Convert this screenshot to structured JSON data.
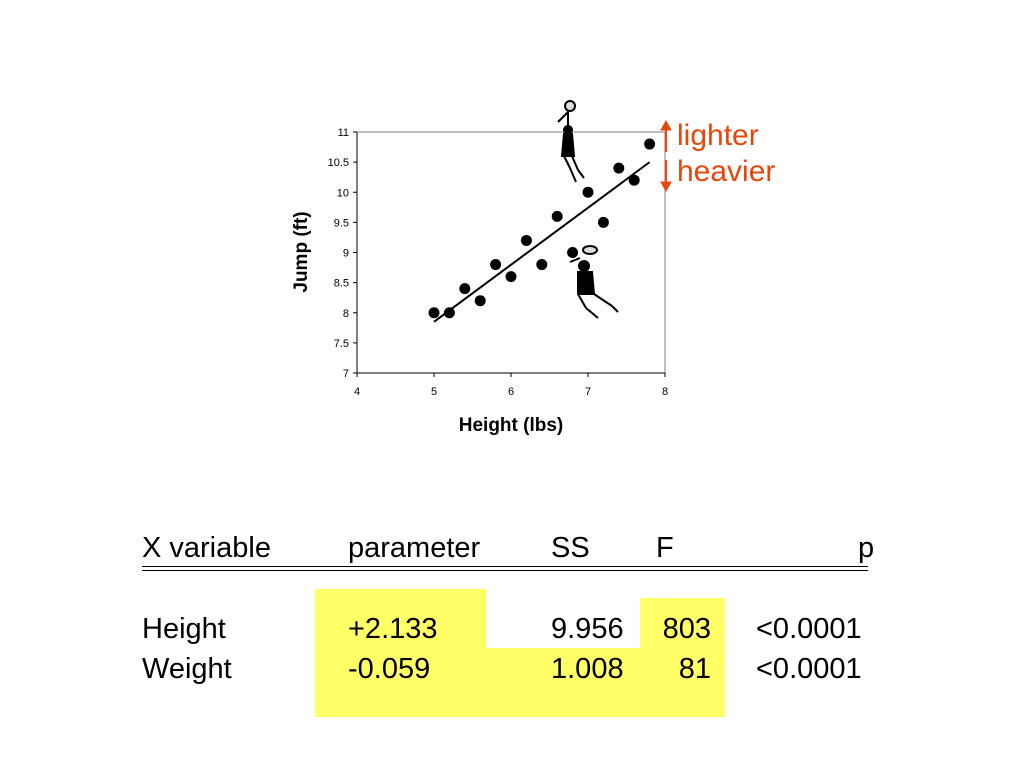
{
  "chart_data": {
    "type": "scatter",
    "xlabel": "Height (lbs)",
    "ylabel": "Jump (ft)",
    "xlim": [
      4,
      8
    ],
    "ylim": [
      7,
      11
    ],
    "xticks": [
      "4",
      "5",
      "6",
      "7",
      "8"
    ],
    "yticks": [
      "7",
      "7.5",
      "8",
      "8.5",
      "9",
      "9.5",
      "10",
      "10.5",
      "11"
    ],
    "points": [
      {
        "x": 5.0,
        "y": 8.0
      },
      {
        "x": 5.2,
        "y": 8.0
      },
      {
        "x": 5.4,
        "y": 8.4
      },
      {
        "x": 5.6,
        "y": 8.2
      },
      {
        "x": 5.8,
        "y": 8.8
      },
      {
        "x": 6.0,
        "y": 8.6
      },
      {
        "x": 6.2,
        "y": 9.2
      },
      {
        "x": 6.4,
        "y": 8.8
      },
      {
        "x": 6.6,
        "y": 9.6
      },
      {
        "x": 6.8,
        "y": 9.0
      },
      {
        "x": 7.0,
        "y": 10.0
      },
      {
        "x": 7.2,
        "y": 9.5
      },
      {
        "x": 7.4,
        "y": 10.4
      },
      {
        "x": 7.6,
        "y": 10.2
      },
      {
        "x": 7.8,
        "y": 10.8
      }
    ],
    "trendline": {
      "x1": 5.0,
      "y1": 7.85,
      "x2": 7.8,
      "y2": 10.5
    },
    "grid": false,
    "annotations": {
      "up_label": "lighter",
      "down_label": "heavier",
      "color": "#e8460c"
    }
  },
  "table": {
    "headers": [
      "X variable",
      "parameter",
      "SS",
      "F",
      "p"
    ],
    "rows": [
      {
        "xvar": "Height",
        "parameter": "+2.133",
        "ss": "9.956",
        "f": "803",
        "p": "<0.0001"
      },
      {
        "xvar": "Weight",
        "parameter": "-0.059",
        "ss": "1.008",
        "f": "81",
        "p": "<0.0001"
      }
    ],
    "highlight_color": "#ffff66"
  }
}
